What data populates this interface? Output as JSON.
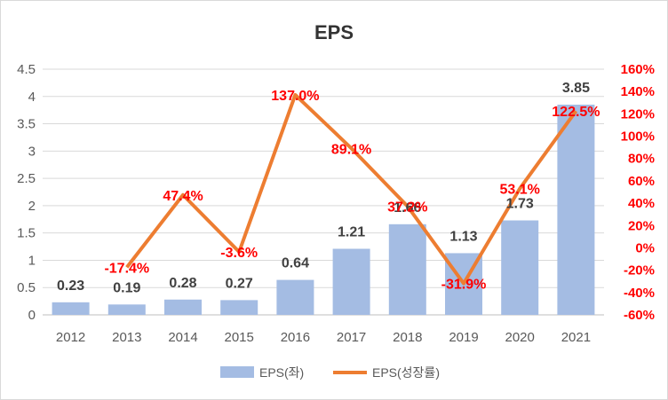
{
  "chart_data": {
    "type": "bar",
    "title": "EPS",
    "categories": [
      "2012",
      "2013",
      "2014",
      "2015",
      "2016",
      "2017",
      "2018",
      "2019",
      "2020",
      "2021"
    ],
    "series": [
      {
        "name": "EPS(좌)",
        "type": "bar",
        "axis": "left",
        "values": [
          0.23,
          0.19,
          0.28,
          0.27,
          0.64,
          1.21,
          1.66,
          1.13,
          1.73,
          3.85
        ],
        "labels": [
          "0.23",
          "0.19",
          "0.28",
          "0.27",
          "0.64",
          "1.21",
          "1.66",
          "1.13",
          "1.73",
          "3.85"
        ],
        "color": "#a4bce3"
      },
      {
        "name": "EPS(성장률)",
        "type": "line",
        "axis": "right",
        "values": [
          null,
          -17.4,
          47.4,
          -3.6,
          137.0,
          89.1,
          37.2,
          -31.9,
          53.1,
          122.5
        ],
        "labels": [
          "",
          "-17.4%",
          "47.4%",
          "-3.6%",
          "137.0%",
          "89.1%",
          "37.2%",
          "-31.9%",
          "53.1%",
          "122.5%"
        ],
        "color": "#ed7d31"
      }
    ],
    "y_left": {
      "ylim": [
        0,
        4.5
      ],
      "ticks": [
        0,
        0.5,
        1,
        1.5,
        2,
        2.5,
        3,
        3.5,
        4,
        4.5
      ],
      "tick_labels": [
        "0",
        "0.5",
        "1",
        "1.5",
        "2",
        "2.5",
        "3",
        "3.5",
        "4",
        "4.5"
      ]
    },
    "y_right": {
      "ylim": [
        -60,
        160
      ],
      "ticks": [
        -60,
        -40,
        -20,
        0,
        20,
        40,
        60,
        80,
        100,
        120,
        140,
        160
      ],
      "tick_labels": [
        "-60%",
        "-40%",
        "-20%",
        "0%",
        "20%",
        "40%",
        "60%",
        "80%",
        "100%",
        "120%",
        "140%",
        "160%"
      ],
      "color": "#ff0000"
    },
    "grid": true,
    "legend": "bottom",
    "label_color_line": "#ff0000",
    "label_color_bar": "#404040"
  }
}
